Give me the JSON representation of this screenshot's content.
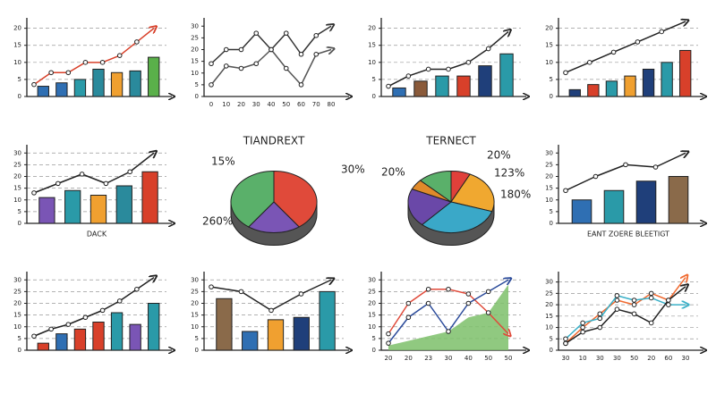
{
  "chart_data": [
    {
      "type": "bar",
      "ylim": [
        0,
        22
      ],
      "yticks": [
        0,
        5,
        10,
        15,
        20
      ],
      "grid": true,
      "values": [
        3,
        4,
        5,
        8,
        7,
        7.5,
        11.5
      ],
      "colors": [
        "#2f6fb3",
        "#2f6fb3",
        "#2a9aa8",
        "#2a8a9c",
        "#f0a030",
        "#2a8a9c",
        "#5ab04a"
      ],
      "series": [
        {
          "color": "#d8402a",
          "values": [
            3.5,
            7,
            7,
            10,
            10,
            12,
            16,
            20
          ]
        }
      ]
    },
    {
      "type": "line",
      "ylim": [
        0,
        32
      ],
      "yticks": [
        0,
        5,
        10,
        15,
        20,
        25,
        30
      ],
      "grid": false,
      "categories": [
        "0",
        "10",
        "20",
        "30",
        "40",
        "50",
        "60",
        "70",
        "80"
      ],
      "series": [
        {
          "color": "#333333",
          "values": [
            14,
            20,
            20,
            27,
            20,
            27,
            18,
            26,
            30
          ]
        },
        {
          "color": "#555555",
          "values": [
            5,
            13,
            12,
            14,
            20,
            12,
            5,
            18,
            20
          ]
        }
      ]
    },
    {
      "type": "bar",
      "ylim": [
        0,
        22
      ],
      "yticks": [
        0,
        5,
        10,
        15,
        20
      ],
      "grid": true,
      "values": [
        2.5,
        4.5,
        6,
        6,
        9,
        12.5
      ],
      "colors": [
        "#2f6fb3",
        "#8a5a3a",
        "#2a9aa8",
        "#d8402a",
        "#1f3f7a",
        "#2a9aa8"
      ],
      "series": [
        {
          "color": "#222222",
          "values": [
            3,
            6,
            8,
            8,
            10,
            14,
            19
          ]
        }
      ]
    },
    {
      "type": "bar",
      "ylim": [
        0,
        22
      ],
      "yticks": [
        0,
        5,
        10,
        15,
        20
      ],
      "grid": true,
      "values": [
        2,
        3.5,
        4.5,
        6,
        8,
        10,
        13.5
      ],
      "colors": [
        "#1f3f7a",
        "#d8402a",
        "#2a9aa8",
        "#f0a030",
        "#1f3f7a",
        "#2a9aa8",
        "#d8402a"
      ],
      "series": [
        {
          "color": "#222222",
          "values": [
            7,
            10,
            13,
            16,
            19,
            22
          ]
        }
      ]
    },
    {
      "type": "bar",
      "ylim": [
        0,
        32
      ],
      "yticks": [
        0,
        5,
        10,
        15,
        20,
        25,
        30
      ],
      "grid": true,
      "xlabel": "DACK",
      "values": [
        11,
        14,
        12,
        16,
        22
      ],
      "colors": [
        "#7a55b5",
        "#2a9aa8",
        "#f0a030",
        "#2a8a9c",
        "#d8402a"
      ],
      "series": [
        {
          "color": "#222222",
          "values": [
            13,
            17,
            21,
            17,
            22,
            30
          ]
        }
      ]
    },
    {
      "type": "pie",
      "title": "TIANDREXT",
      "values": [
        40,
        20,
        40
      ],
      "colors": [
        "#e04a3a",
        "#7a55b5",
        "#5ab06a"
      ],
      "annotations": [
        "15%",
        "30%",
        "260%"
      ]
    },
    {
      "type": "pie",
      "title": "TERNECT",
      "values": [
        8,
        25,
        35,
        22,
        6,
        14
      ],
      "colors": [
        "#e0403a",
        "#f0a830",
        "#3aa8c8",
        "#6a48a8",
        "#e08a2a",
        "#5ab06a"
      ],
      "annotations": [
        "20%",
        "123%",
        "180%",
        "20%"
      ]
    },
    {
      "type": "bar",
      "ylim": [
        0,
        32
      ],
      "yticks": [
        0,
        5,
        10,
        15,
        20,
        25,
        30
      ],
      "grid": false,
      "xlabel": "EANT ZOERE BLEETIGT",
      "values": [
        10,
        14,
        18,
        20
      ],
      "colors": [
        "#2f6fb3",
        "#2a9aa8",
        "#1f3f7a",
        "#8a6a4a"
      ],
      "series": [
        {
          "color": "#222222",
          "values": [
            14,
            20,
            25,
            24,
            30
          ]
        }
      ]
    },
    {
      "type": "bar",
      "ylim": [
        0,
        32
      ],
      "yticks": [
        0,
        5,
        10,
        15,
        20,
        25,
        30
      ],
      "grid": true,
      "values": [
        3,
        7,
        9,
        12,
        16,
        11,
        20
      ],
      "colors": [
        "#d8402a",
        "#2f6fb3",
        "#d8402a",
        "#d8402a",
        "#2a9aa8",
        "#7a55b5",
        "#2a9aa8"
      ],
      "series": [
        {
          "color": "#222222",
          "values": [
            6,
            9,
            11,
            14,
            17,
            21,
            26,
            31
          ]
        }
      ]
    },
    {
      "type": "bar",
      "ylim": [
        0,
        32
      ],
      "yticks": [
        0,
        5,
        10,
        15,
        20,
        25,
        30
      ],
      "grid": true,
      "values": [
        22,
        8,
        13,
        14,
        25
      ],
      "colors": [
        "#8a6a4a",
        "#2f6fb3",
        "#f0a030",
        "#1f3f7a",
        "#2a9aa8"
      ],
      "series": [
        {
          "color": "#222222",
          "values": [
            27,
            25,
            17,
            24,
            30
          ]
        }
      ]
    },
    {
      "type": "line",
      "ylim": [
        0,
        32
      ],
      "yticks": [
        0,
        5,
        10,
        15,
        20,
        25,
        30
      ],
      "grid": true,
      "categories": [
        "20",
        "20",
        "23",
        "30",
        "40",
        "50",
        "50"
      ],
      "area": {
        "color": "#7cc06a",
        "values": [
          2,
          4,
          6,
          8,
          14,
          16,
          28
        ]
      },
      "series": [
        {
          "color": "#e04a3a",
          "values": [
            7,
            20,
            26,
            26,
            24,
            16,
            7
          ]
        },
        {
          "color": "#2a4a9a",
          "values": [
            3,
            14,
            20,
            8,
            20,
            25,
            30
          ]
        }
      ]
    },
    {
      "type": "line",
      "ylim": [
        0,
        33
      ],
      "yticks": [
        0,
        5,
        10,
        15,
        20,
        25,
        30
      ],
      "grid": true,
      "categories": [
        "30",
        "10",
        "30",
        "30",
        "50",
        "20",
        "60",
        "30"
      ],
      "series": [
        {
          "color": "#f06a30",
          "values": [
            3,
            10,
            16,
            22,
            20,
            25,
            22,
            32
          ]
        },
        {
          "color": "#3ab0c8",
          "values": [
            5,
            12,
            14,
            24,
            22,
            23,
            20,
            20
          ]
        },
        {
          "color": "#222222",
          "values": [
            3,
            8,
            10,
            18,
            16,
            12,
            22,
            28
          ]
        }
      ]
    }
  ]
}
